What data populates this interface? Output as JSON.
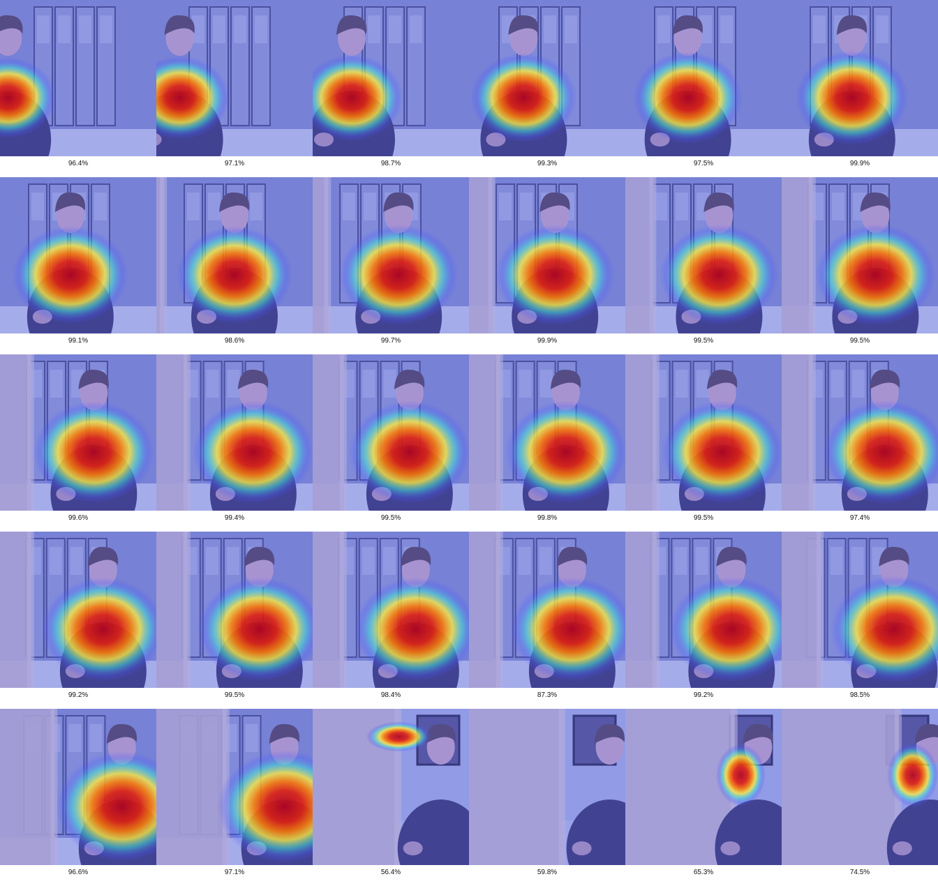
{
  "rows": 5,
  "cols": 6,
  "icon": "heatmap-overlay-image",
  "frames": [
    {
      "caption": "96.4%",
      "scene": "store",
      "blond": 0.0,
      "personX": 0.05,
      "attention": 0.25,
      "attentionFocus": "torso"
    },
    {
      "caption": "97.1%",
      "scene": "store",
      "blond": 0.0,
      "personX": 0.15,
      "attention": 0.3,
      "attentionFocus": "torso"
    },
    {
      "caption": "98.7%",
      "scene": "store",
      "blond": 0.0,
      "personX": 0.25,
      "attention": 0.35,
      "attentionFocus": "torso"
    },
    {
      "caption": "99.3%",
      "scene": "store",
      "blond": 0.0,
      "personX": 0.35,
      "attention": 0.4,
      "attentionFocus": "torso"
    },
    {
      "caption": "97.5%",
      "scene": "store",
      "blond": 0.0,
      "personX": 0.4,
      "attention": 0.45,
      "attentionFocus": "torso"
    },
    {
      "caption": "99.9%",
      "scene": "store",
      "blond": 0.0,
      "personX": 0.45,
      "attention": 0.5,
      "attentionFocus": "torso"
    },
    {
      "caption": "99.1%",
      "scene": "store",
      "blond": 0.0,
      "personX": 0.45,
      "attention": 0.55,
      "attentionFocus": "torso"
    },
    {
      "caption": "98.6%",
      "scene": "store",
      "blond": 0.05,
      "personX": 0.5,
      "attention": 0.55,
      "attentionFocus": "torso"
    },
    {
      "caption": "99.7%",
      "scene": "store",
      "blond": 0.1,
      "personX": 0.55,
      "attention": 0.6,
      "attentionFocus": "torso"
    },
    {
      "caption": "99.9%",
      "scene": "store",
      "blond": 0.15,
      "personX": 0.55,
      "attention": 0.6,
      "attentionFocus": "torso"
    },
    {
      "caption": "99.5%",
      "scene": "store",
      "blond": 0.18,
      "personX": 0.6,
      "attention": 0.6,
      "attentionFocus": "torso"
    },
    {
      "caption": "99.5%",
      "scene": "store",
      "blond": 0.2,
      "personX": 0.6,
      "attention": 0.62,
      "attentionFocus": "torso"
    },
    {
      "caption": "99.6%",
      "scene": "store",
      "blond": 0.2,
      "personX": 0.6,
      "attention": 0.62,
      "attentionFocus": "torso"
    },
    {
      "caption": "99.4%",
      "scene": "store",
      "blond": 0.2,
      "personX": 0.62,
      "attention": 0.64,
      "attentionFocus": "torso"
    },
    {
      "caption": "99.5%",
      "scene": "store",
      "blond": 0.2,
      "personX": 0.62,
      "attention": 0.64,
      "attentionFocus": "torso"
    },
    {
      "caption": "99.8%",
      "scene": "store",
      "blond": 0.2,
      "personX": 0.62,
      "attention": 0.64,
      "attentionFocus": "torso"
    },
    {
      "caption": "99.5%",
      "scene": "store",
      "blond": 0.2,
      "personX": 0.62,
      "attention": 0.64,
      "attentionFocus": "torso"
    },
    {
      "caption": "97.4%",
      "scene": "store",
      "blond": 0.2,
      "personX": 0.66,
      "attention": 0.66,
      "attentionFocus": "torso"
    },
    {
      "caption": "99.2%",
      "scene": "store",
      "blond": 0.2,
      "personX": 0.66,
      "attention": 0.66,
      "attentionFocus": "torso"
    },
    {
      "caption": "99.5%",
      "scene": "store",
      "blond": 0.2,
      "personX": 0.66,
      "attention": 0.66,
      "attentionFocus": "torso"
    },
    {
      "caption": "98.4%",
      "scene": "store",
      "blond": 0.2,
      "personX": 0.66,
      "attention": 0.66,
      "attentionFocus": "torso"
    },
    {
      "caption": "87.3%",
      "scene": "store",
      "blond": 0.2,
      "personX": 0.66,
      "attention": 0.66,
      "attentionFocus": "torso"
    },
    {
      "caption": "99.2%",
      "scene": "store",
      "blond": 0.2,
      "personX": 0.68,
      "attention": 0.68,
      "attentionFocus": "torso"
    },
    {
      "caption": "98.5%",
      "scene": "store",
      "blond": 0.25,
      "personX": 0.72,
      "attention": 0.72,
      "attentionFocus": "torso"
    },
    {
      "caption": "96.6%",
      "scene": "store",
      "blond": 0.35,
      "personX": 0.78,
      "attention": 0.78,
      "attentionFocus": "torso"
    },
    {
      "caption": "97.1%",
      "scene": "store",
      "blond": 0.45,
      "personX": 0.82,
      "attention": 0.82,
      "attentionFocus": "torso"
    },
    {
      "caption": "56.4%",
      "scene": "office",
      "blond": 0.55,
      "personX": 0.82,
      "attention": 0.35,
      "attentionFocus": "wall"
    },
    {
      "caption": "59.8%",
      "scene": "office",
      "blond": 0.6,
      "personX": 0.9,
      "attention": 0.0,
      "attentionFocus": "none"
    },
    {
      "caption": "65.3%",
      "scene": "office",
      "blond": 0.7,
      "personX": 0.85,
      "attention": 0.78,
      "attentionFocus": "ear"
    },
    {
      "caption": "74.5%",
      "scene": "office",
      "blond": 0.75,
      "personX": 0.95,
      "attention": 0.85,
      "attentionFocus": "ear"
    }
  ],
  "colors": {
    "tint": "#6a6fe0",
    "storeBg": "#7f8bcf",
    "officeBg": "#a7b3ea",
    "hair": "#4a3a55",
    "shirt": "#2d2a6a",
    "skin": "#c9a7c9",
    "blond": "#c7b8cf",
    "heatRed": "#b5001a",
    "heatOrange": "#ff7b00",
    "heatYellow": "#ffef3c",
    "heatCyan": "#3fe0d6",
    "heatBlue": "#4a5cff"
  }
}
